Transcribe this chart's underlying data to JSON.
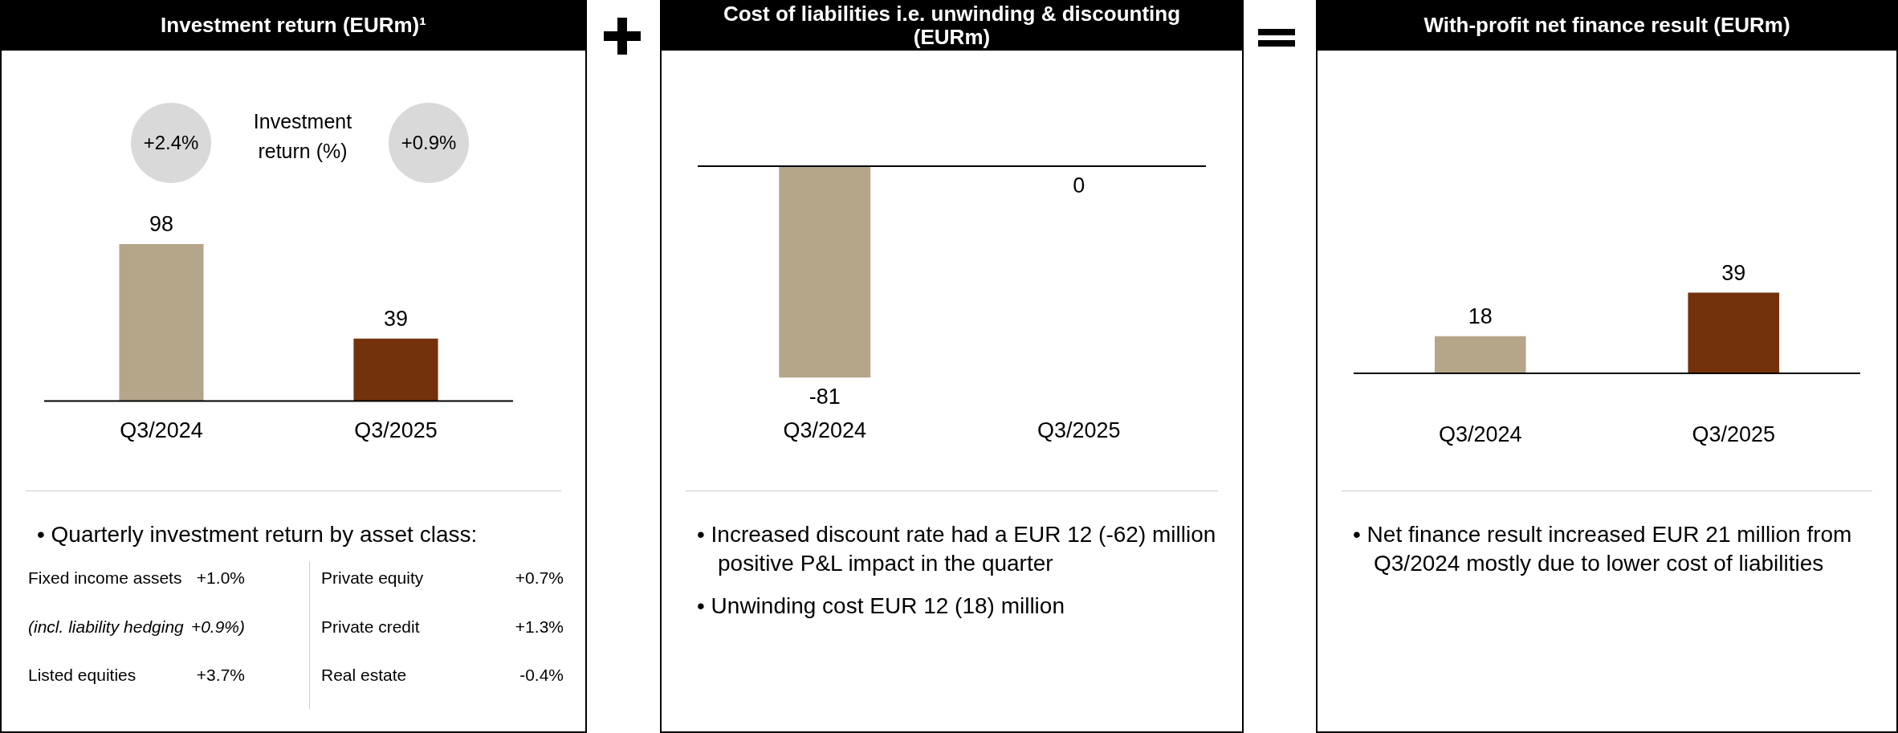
{
  "chart_data": [
    {
      "type": "bar",
      "title": "Investment return (EURm)¹",
      "categories": [
        "Q3/2024",
        "Q3/2025"
      ],
      "values": [
        98,
        39
      ],
      "colors": [
        "#b5a68a",
        "#73310c"
      ],
      "data_labels": true,
      "tick_labels": "x",
      "annotations": [
        "+2.4%",
        "Investment return (%)",
        "+0.9%",
        "• Quarterly investment return by asset class:",
        "Fixed income assets",
        "+1.0%",
        "Private equity",
        "+0.7%",
        "(incl. liability hedging",
        "+0.9%)",
        "Private credit",
        "+1.3%",
        "Listed equities",
        "+3.7%",
        "Real estate",
        "-0.4%"
      ]
    },
    {
      "type": "bar",
      "title": "Cost of liabilities i.e. unwinding & discounting (EURm)",
      "categories": [
        "Q3/2024",
        "Q3/2025"
      ],
      "values": [
        -81,
        0
      ],
      "colors": [
        "#b5a68a",
        "#73310c"
      ],
      "data_labels": true,
      "tick_labels": "x",
      "annotations": [
        "• Increased discount rate had a EUR 12 (-62) million positive P&L impact in the quarter",
        "• Unwinding cost EUR 12 (18) million"
      ]
    },
    {
      "type": "bar",
      "title": "With-profit net finance result (EURm)",
      "categories": [
        "Q3/2024",
        "Q3/2025"
      ],
      "values": [
        18,
        39
      ],
      "colors": [
        "#b5a68a",
        "#73310c"
      ],
      "data_labels": true,
      "tick_labels": "x",
      "annotations": [
        "• Net finance result increased EUR 21 million from Q3/2024 mostly due to lower cost of liabilities"
      ]
    }
  ]
}
